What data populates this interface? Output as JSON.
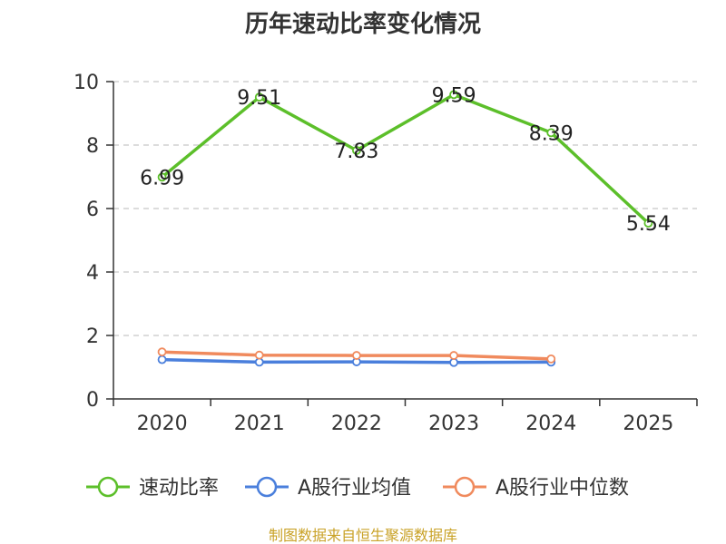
{
  "chart_data": {
    "type": "line",
    "title": "历年速动比率变化情况",
    "x": [
      "2020",
      "2021",
      "2022",
      "2023",
      "2024",
      "2025"
    ],
    "ylim": [
      0,
      10
    ],
    "yticks": [
      0,
      2,
      4,
      6,
      8,
      10
    ],
    "grid": true,
    "legend_position": "bottom",
    "series": [
      {
        "name": "速动比率",
        "color": "#5cbf2a",
        "values": [
          6.99,
          9.51,
          7.83,
          9.59,
          8.39,
          5.54
        ],
        "labels": [
          "6.99",
          "9.51",
          "7.83",
          "9.59",
          "8.39",
          "5.54"
        ]
      },
      {
        "name": "A股行业均值",
        "color": "#4a7fdc",
        "values": [
          1.24,
          1.16,
          1.17,
          1.15,
          1.16,
          null
        ]
      },
      {
        "name": "A股行业中位数",
        "color": "#f08a5d",
        "values": [
          1.48,
          1.38,
          1.37,
          1.37,
          1.26,
          null
        ]
      }
    ]
  },
  "footer": {
    "source": "制图数据来自恒生聚源数据库"
  }
}
